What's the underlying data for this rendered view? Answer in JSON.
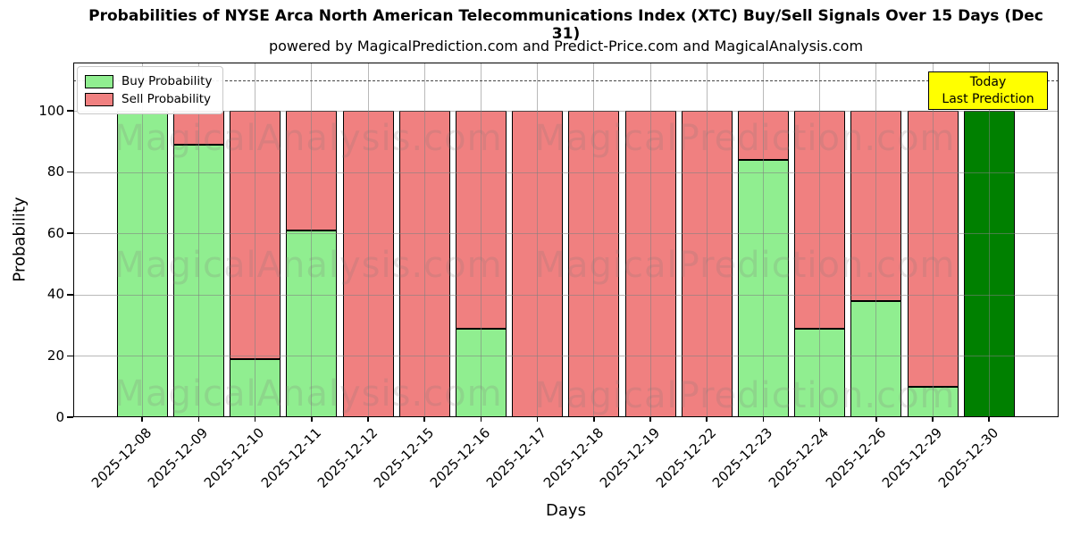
{
  "figure": {
    "title": "Probabilities of NYSE Arca North American Telecommunications Index (XTC) Buy/Sell Signals Over 15 Days (Dec 31)",
    "subtitle": "powered by MagicalPrediction.com and Predict-Price.com and MagicalAnalysis.com"
  },
  "legend": {
    "items": [
      {
        "label": "Buy Probability",
        "color": "#90ee90"
      },
      {
        "label": "Sell Probability",
        "color": "#f08080"
      }
    ]
  },
  "annotation": {
    "line1": "Today",
    "line2": "Last Prediction",
    "bg_color": "#ffff00"
  },
  "watermarks": {
    "left_text": "MagicalAnalysis.com",
    "right_text": "MagicalPrediction.com"
  },
  "colors": {
    "buy": "#90ee90",
    "sell": "#f08080",
    "today_bar": "#008000",
    "grid": "#b0b0b0",
    "dashed_line": "#474747",
    "annotation_bg": "#ffff00"
  },
  "chart_data": {
    "type": "bar",
    "stacked": true,
    "title": "Probabilities of NYSE Arca North American Telecommunications Index (XTC) Buy/Sell Signals Over 15 Days (Dec 31)",
    "subtitle": "powered by MagicalPrediction.com and Predict-Price.com and MagicalAnalysis.com",
    "xlabel": "Days",
    "ylabel": "Probability",
    "ylim": [
      0,
      115.7
    ],
    "yticks": [
      0,
      20,
      40,
      60,
      80,
      100
    ],
    "grid": true,
    "legend_position": "upper left",
    "dashed_hline": 110,
    "categories": [
      "2025-12-08",
      "2025-12-09",
      "2025-12-10",
      "2025-12-11",
      "2025-12-12",
      "2025-12-15",
      "2025-12-16",
      "2025-12-17",
      "2025-12-18",
      "2025-12-19",
      "2025-12-22",
      "2025-12-23",
      "2025-12-24",
      "2025-12-26",
      "2025-12-29",
      "2025-12-30"
    ],
    "series": [
      {
        "name": "Buy Probability",
        "color": "#90ee90",
        "values": [
          100,
          89,
          19,
          61,
          0,
          0,
          29,
          0,
          0,
          0,
          0,
          84,
          29,
          38,
          10,
          100
        ]
      },
      {
        "name": "Sell Probability",
        "color": "#f08080",
        "values": [
          0,
          11,
          81,
          39,
          100,
          100,
          71,
          100,
          100,
          100,
          100,
          16,
          71,
          62,
          90,
          0
        ]
      }
    ],
    "today": {
      "category": "2025-12-30",
      "index": 15,
      "value": 100,
      "color": "#008000",
      "label": "Today Last Prediction"
    }
  }
}
